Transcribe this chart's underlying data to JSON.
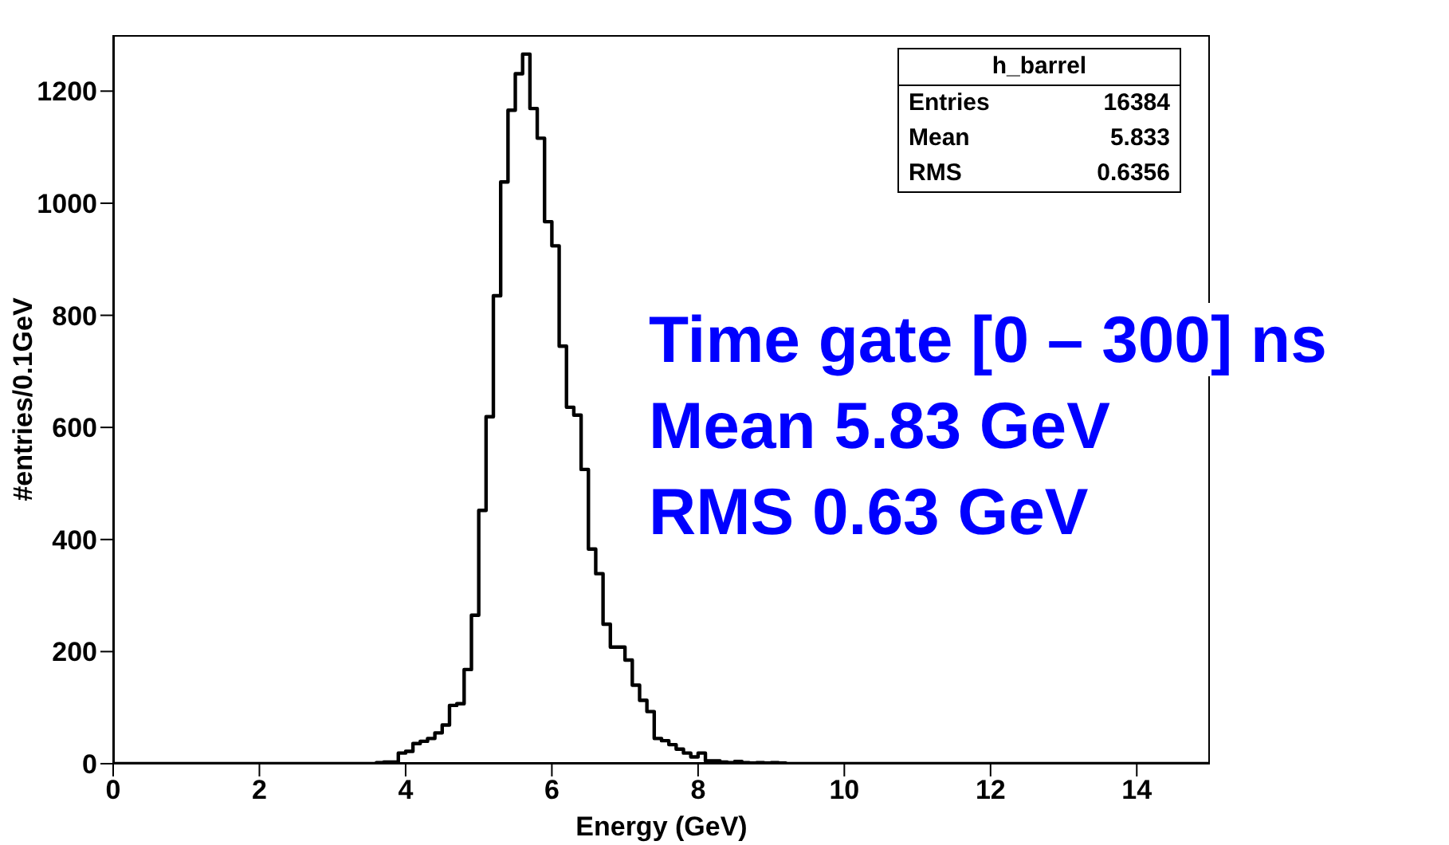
{
  "chart_data": {
    "type": "histogram",
    "xlabel": "Energy (GeV)",
    "ylabel": "#entries/0.1GeV",
    "color": "#000000",
    "bins": [
      0,
      0.1,
      0.2,
      0.3,
      0.4,
      0.5,
      0.6,
      0.7,
      0.8,
      0.9,
      1,
      1.1,
      1.2,
      1.3,
      1.4,
      1.5,
      1.6,
      1.7,
      1.8,
      1.9,
      2,
      2.1,
      2.2,
      2.3,
      2.4,
      2.5,
      2.6,
      2.7,
      2.8,
      2.9,
      3,
      3.1,
      3.2,
      3.3,
      3.4,
      3.5,
      3.6,
      3.7,
      3.8,
      3.9,
      4,
      4.1,
      4.2,
      4.3,
      4.4,
      4.5,
      4.6,
      4.7,
      4.8,
      4.9,
      5,
      5.1,
      5.2,
      5.3,
      5.4,
      5.5,
      5.6,
      5.7,
      5.8,
      5.9,
      6,
      6.1,
      6.2,
      6.3,
      6.4,
      6.5,
      6.6,
      6.7,
      6.8,
      6.9,
      7,
      7.1,
      7.2,
      7.3,
      7.4,
      7.5,
      7.6,
      7.7,
      7.8,
      7.9,
      8,
      8.1,
      8.2,
      8.3,
      8.4,
      8.5,
      8.6,
      8.7,
      8.8,
      8.9,
      9,
      9.1,
      9.2,
      9.3,
      9.4,
      9.5,
      9.6,
      9.7,
      9.8,
      9.9,
      10,
      10.1,
      10.2,
      10.3,
      10.4,
      10.5,
      10.6,
      10.7,
      10.8,
      10.9,
      11,
      11.1,
      11.2,
      11.3,
      11.4,
      11.5,
      11.6,
      11.7,
      11.8,
      11.9,
      12,
      12.1,
      12.2,
      12.3,
      12.4,
      12.5,
      12.6,
      12.7,
      12.8,
      12.9,
      13,
      13.1,
      13.2,
      13.3,
      13.4,
      13.5,
      13.6,
      13.7,
      13.8,
      13.9,
      14,
      14.1,
      14.2,
      14.3,
      14.4,
      14.5,
      14.6,
      14.7,
      14.8,
      14.9,
      15
    ],
    "values": [
      0,
      0,
      0,
      0,
      0,
      0,
      0,
      0,
      0,
      0,
      0,
      0,
      0,
      0,
      0,
      0,
      0,
      0,
      0,
      0,
      0,
      0,
      0,
      0,
      0,
      0,
      0,
      0,
      0,
      0,
      0,
      0,
      0,
      0,
      0,
      0,
      2,
      3,
      3,
      19,
      22,
      36,
      40,
      45,
      55,
      69,
      104,
      107,
      168,
      265,
      452,
      619,
      835,
      1038,
      1166,
      1231,
      1266,
      1169,
      1116,
      967,
      924,
      745,
      636,
      622,
      525,
      383,
      339,
      249,
      208,
      208,
      185,
      140,
      113,
      93,
      45,
      41,
      34,
      26,
      19,
      12,
      19,
      5,
      5,
      3,
      2,
      4,
      2,
      1,
      2,
      1,
      2,
      1,
      0,
      0,
      0,
      0,
      0,
      0,
      0,
      0,
      0,
      0,
      0,
      0,
      0,
      0,
      0,
      0,
      0,
      0,
      0,
      0,
      0,
      0,
      0,
      0,
      0,
      0,
      0,
      0,
      0,
      0,
      0,
      0,
      0,
      0,
      0,
      0,
      0,
      0,
      0,
      0,
      0,
      0,
      0,
      0,
      0,
      0,
      0,
      0,
      0,
      0,
      0,
      0,
      0,
      0,
      0,
      0,
      0,
      0
    ],
    "xlim": [
      0,
      15
    ],
    "xticks": [
      0,
      2,
      4,
      6,
      8,
      10,
      12,
      14
    ],
    "ylim": [
      0,
      1300
    ],
    "yticks": [
      0,
      200,
      400,
      600,
      800,
      1000,
      1200
    ],
    "annotations": [
      "h_barrel",
      "Entries 16384",
      "Mean 5.833",
      "RMS 0.6356",
      "Time gate [0 – 300] ns",
      "Mean 5.83 GeV",
      "RMS 0.63 GeV"
    ]
  }
}
